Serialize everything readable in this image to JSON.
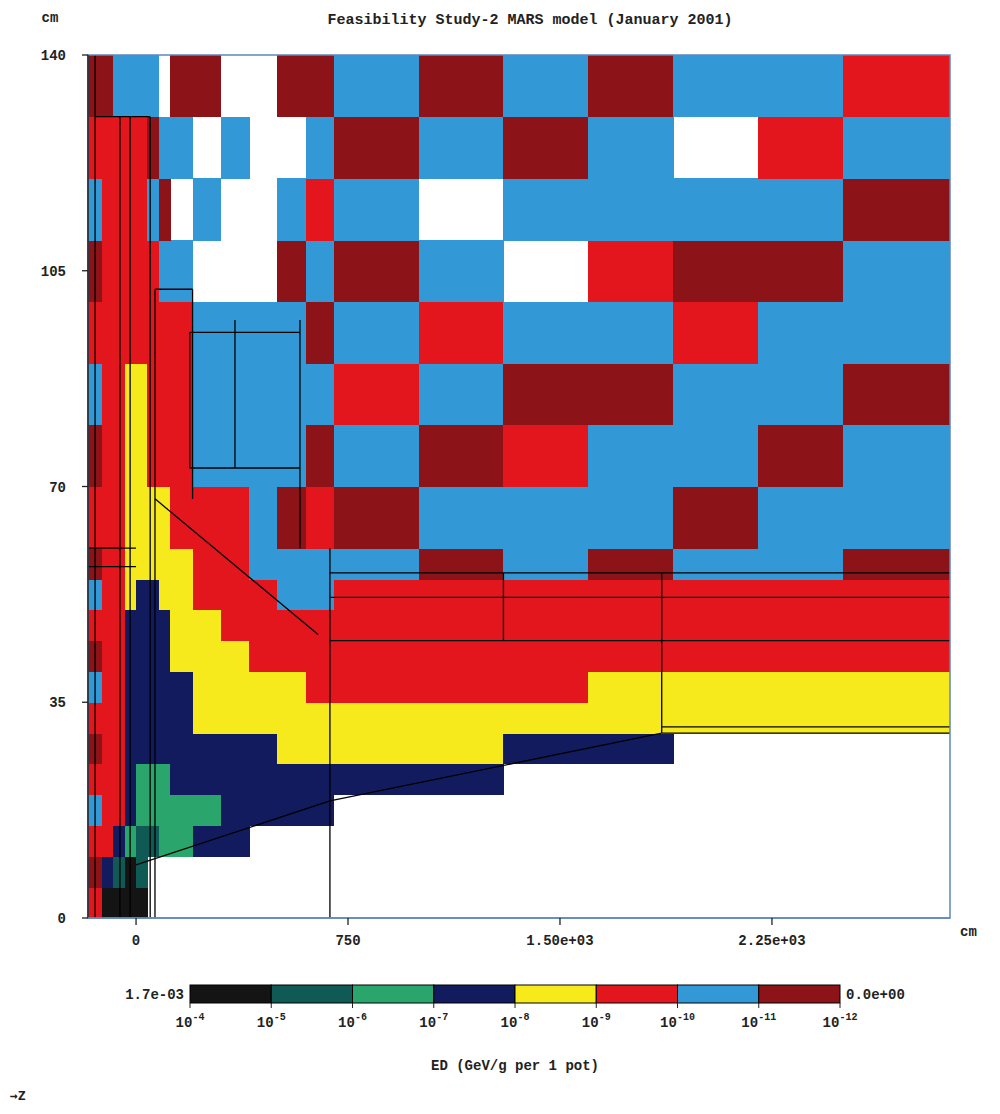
{
  "chart_data": {
    "type": "heatmap",
    "title": "Feasibility Study-2 MARS model (January 2001)",
    "x_label": "cm",
    "y_label": "cm",
    "annotation": "→Z",
    "xlim": [
      -170,
      2880
    ],
    "ylim": [
      0,
      140
    ],
    "xticks": [
      0,
      750,
      {
        "value": 1500,
        "label": "1.50e+03"
      },
      {
        "value": 2250,
        "label": "2.25e+03"
      }
    ],
    "yticks": [
      0,
      35,
      70,
      105,
      140
    ],
    "x_edges": [
      -170,
      -120,
      -80,
      -40,
      0,
      40,
      80,
      120,
      200,
      300,
      400,
      500,
      600,
      700,
      1000,
      1300,
      1600,
      1900,
      2200,
      2500,
      2880
    ],
    "y_edges": [
      0,
      5,
      10,
      15,
      20,
      25,
      30,
      35,
      40,
      45,
      50,
      55,
      60,
      70,
      80,
      90,
      100,
      110,
      120,
      130,
      140
    ],
    "values": [
      [
        5e-10,
        5e-05,
        5e-05,
        5e-05,
        5e-05,
        null,
        null,
        null,
        null,
        null,
        null,
        null,
        null,
        null,
        null,
        null,
        null,
        null,
        null,
        null
      ],
      [
        5e-12,
        5e-08,
        5e-06,
        5e-05,
        5e-06,
        null,
        null,
        null,
        null,
        null,
        null,
        null,
        null,
        null,
        null,
        null,
        null,
        null,
        null,
        null
      ],
      [
        5e-10,
        5e-10,
        5e-08,
        5e-07,
        5e-06,
        5e-06,
        5e-07,
        5e-07,
        5e-08,
        5e-08,
        null,
        null,
        null,
        null,
        null,
        null,
        null,
        null,
        null,
        null
      ],
      [
        5e-11,
        5e-10,
        5e-10,
        5e-08,
        5e-07,
        5e-07,
        5e-07,
        5e-07,
        5e-07,
        5e-08,
        5e-08,
        5e-08,
        5e-08,
        null,
        null,
        null,
        null,
        null,
        null,
        null
      ],
      [
        5e-10,
        5e-10,
        5e-10,
        5e-08,
        5e-07,
        5e-07,
        5e-07,
        5e-08,
        5e-08,
        5e-08,
        5e-08,
        5e-08,
        5e-08,
        5e-08,
        5e-08,
        null,
        null,
        null,
        null,
        null
      ],
      [
        5e-12,
        5e-10,
        5e-10,
        5e-08,
        5e-08,
        5e-08,
        5e-08,
        5e-08,
        5e-08,
        5e-08,
        5e-08,
        5e-09,
        5e-09,
        5e-09,
        5e-09,
        5e-08,
        5e-08,
        null,
        null,
        null
      ],
      [
        5e-10,
        5e-10,
        5e-10,
        5e-08,
        5e-08,
        5e-08,
        5e-08,
        5e-08,
        5e-09,
        5e-09,
        5e-09,
        5e-09,
        5e-09,
        5e-09,
        5e-09,
        5e-09,
        5e-09,
        5e-09,
        5e-09,
        5e-09
      ],
      [
        5e-11,
        5e-10,
        5e-10,
        5e-08,
        5e-08,
        5e-08,
        5e-08,
        5e-08,
        5e-09,
        5e-09,
        5e-09,
        5e-09,
        5e-10,
        5e-10,
        5e-10,
        5e-10,
        5e-09,
        5e-09,
        5e-09,
        5e-09
      ],
      [
        5e-12,
        5e-10,
        5e-10,
        5e-08,
        5e-08,
        5e-08,
        5e-08,
        5e-09,
        5e-09,
        5e-09,
        5e-10,
        5e-10,
        5e-10,
        5e-10,
        5e-10,
        5e-10,
        5e-10,
        5e-10,
        5e-10,
        5e-10
      ],
      [
        5e-10,
        5e-10,
        5e-10,
        5e-08,
        5e-08,
        5e-08,
        5e-08,
        5e-09,
        5e-09,
        5e-10,
        5e-10,
        5e-10,
        5e-10,
        5e-10,
        5e-10,
        5e-10,
        5e-10,
        5e-10,
        5e-10,
        5e-10
      ],
      [
        5e-11,
        5e-10,
        5e-10,
        5e-09,
        5e-08,
        5e-08,
        5e-09,
        5e-09,
        5e-10,
        5e-10,
        5e-10,
        5e-11,
        5e-11,
        5e-10,
        5e-10,
        5e-10,
        5e-10,
        5e-10,
        5e-10,
        5e-10
      ],
      [
        5e-12,
        5e-10,
        5e-10,
        5e-09,
        5e-09,
        5e-09,
        5e-09,
        5e-09,
        5e-10,
        5e-10,
        5e-11,
        5e-11,
        5e-11,
        5e-11,
        5e-12,
        5e-11,
        5e-12,
        5e-11,
        5e-11,
        5e-12
      ],
      [
        5e-10,
        5e-10,
        5e-10,
        5e-09,
        5e-09,
        5e-09,
        5e-09,
        5e-10,
        5e-10,
        5e-10,
        5e-11,
        5e-12,
        5e-10,
        5e-12,
        5e-11,
        5e-11,
        5e-11,
        5e-12,
        5e-11,
        5e-11
      ],
      [
        5e-12,
        5e-10,
        5e-10,
        5e-09,
        5e-09,
        5e-10,
        5e-10,
        5e-10,
        5e-11,
        5e-11,
        5e-11,
        5e-11,
        5e-12,
        5e-11,
        5e-12,
        5e-10,
        5e-11,
        5e-11,
        5e-12,
        5e-11
      ],
      [
        5e-11,
        5e-10,
        5e-10,
        5e-09,
        5e-09,
        5e-10,
        5e-10,
        5e-10,
        5e-11,
        5e-11,
        5e-11,
        5e-11,
        5e-11,
        5e-10,
        5e-11,
        5e-12,
        5e-12,
        5e-11,
        5e-11,
        5e-12
      ],
      [
        5e-10,
        5e-10,
        5e-10,
        5e-10,
        5e-10,
        5e-10,
        5e-10,
        5e-10,
        5e-11,
        5e-11,
        5e-11,
        5e-11,
        5e-12,
        5e-11,
        5e-10,
        5e-11,
        5e-11,
        5e-10,
        5e-11,
        5e-11
      ],
      [
        5e-12,
        5e-10,
        5e-10,
        5e-10,
        5e-10,
        5e-10,
        5e-11,
        5e-11,
        null,
        null,
        null,
        5e-12,
        5e-11,
        5e-12,
        5e-11,
        null,
        5e-10,
        5e-12,
        5e-12,
        5e-11
      ],
      [
        5e-11,
        5e-10,
        5e-10,
        5e-10,
        5e-10,
        5e-11,
        5e-12,
        null,
        5e-11,
        null,
        null,
        5e-11,
        5e-10,
        5e-11,
        null,
        5e-11,
        5e-11,
        5e-11,
        5e-11,
        5e-12
      ],
      [
        5e-10,
        5e-10,
        5e-10,
        5e-10,
        5e-10,
        5e-12,
        5e-11,
        5e-11,
        null,
        5e-11,
        null,
        null,
        5e-11,
        5e-12,
        5e-11,
        5e-12,
        5e-11,
        null,
        5e-10,
        5e-11
      ],
      [
        5e-12,
        5e-12,
        5e-11,
        5e-11,
        5e-11,
        5e-11,
        null,
        5e-12,
        5e-12,
        null,
        null,
        5e-12,
        5e-12,
        5e-11,
        5e-12,
        5e-11,
        5e-12,
        5e-11,
        5e-11,
        5e-10
      ]
    ],
    "outlines": [
      [
        0,
        8.6,
        686,
        19
      ],
      [
        686,
        19,
        1860,
        30
      ],
      [
        1860,
        30,
        2880,
        30
      ],
      [
        1860,
        31,
        2880,
        31
      ],
      [
        686,
        0,
        686,
        60
      ],
      [
        686,
        56,
        2880,
        56
      ],
      [
        686,
        52,
        2880,
        52
      ],
      [
        686,
        45,
        2880,
        45
      ],
      [
        1300,
        45,
        1300,
        56
      ],
      [
        1860,
        30,
        1860,
        56
      ],
      [
        67,
        68,
        644,
        46
      ],
      [
        67,
        0,
        67,
        102
      ],
      [
        67,
        102,
        200,
        102
      ],
      [
        200,
        68,
        200,
        102
      ],
      [
        190,
        73,
        580,
        73
      ],
      [
        190,
        95,
        580,
        95
      ],
      [
        190,
        73,
        190,
        95
      ],
      [
        350,
        73,
        350,
        97
      ],
      [
        580,
        60,
        580,
        97
      ],
      [
        -145,
        0,
        -145,
        140
      ],
      [
        -57,
        0,
        -57,
        130
      ],
      [
        -21,
        0,
        -21,
        130
      ],
      [
        -145,
        130,
        50,
        130
      ],
      [
        50,
        0,
        50,
        130
      ],
      [
        -170,
        60,
        0,
        60
      ],
      [
        -170,
        57,
        0,
        57
      ]
    ],
    "colorbar": {
      "label": "ED (GeV/g per 1 pot)",
      "range": [
        {
          "value": 0.0017,
          "label": "1.7e-03"
        },
        {
          "value": 0,
          "label": "0.0e+00"
        }
      ],
      "ticks": [
        {
          "value": 0.0001,
          "label": "10-4"
        },
        {
          "value": 1e-05,
          "label": "10-5"
        },
        {
          "value": 1e-06,
          "label": "10-6"
        },
        {
          "value": 1e-07,
          "label": "10-7"
        },
        {
          "value": 1e-08,
          "label": "10-8"
        },
        {
          "value": 1e-09,
          "label": "10-9"
        },
        {
          "value": 1e-10,
          "label": "10-10"
        },
        {
          "value": 1e-11,
          "label": "10-11"
        },
        {
          "value": 1e-12,
          "label": "10-12"
        }
      ],
      "colors": [
        "#141414",
        "#0f5a55",
        "#2aa66c",
        "#121b5e",
        "#f6ea1c",
        "#e3161d",
        "#3399d6",
        "#8c1419"
      ]
    }
  }
}
